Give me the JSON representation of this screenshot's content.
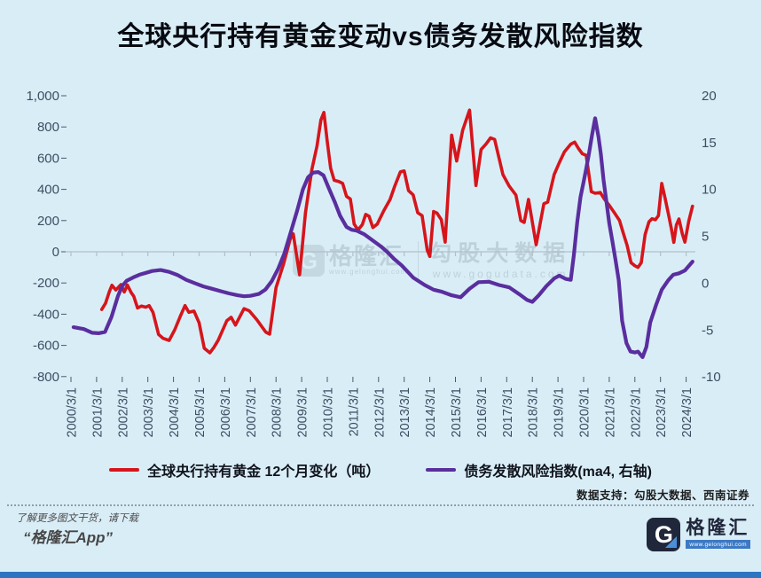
{
  "title": "全球央行持有黄金变动vs债务发散风险指数",
  "source_note": "数据支持：勾股大数据、西南证券",
  "watermark": {
    "icon": "G",
    "brand_name": "格隆汇",
    "brand_url": "www.gelonghui.com",
    "data_brand": "勾股大数据",
    "data_url": "www.gogudata.com"
  },
  "footer": {
    "promo_line1": "了解更多图文干货，请下载",
    "promo_line2": "“格隆汇App”",
    "logo_letter": "G",
    "logo_name": "格隆汇",
    "logo_url": "www.gelonghui.com"
  },
  "colors": {
    "background": "#d9edf7",
    "gold_series": "#d6151b",
    "risk_series": "#5a2e9e",
    "axis_text": "#3d4e61",
    "zero_line": "#b3bfc9",
    "tick_dash": "#4a5a68",
    "bottom_bar": "#2e74c0",
    "logo_navy": "#20273b",
    "logo_blue": "#4a8fd8"
  },
  "chart_data": {
    "type": "line",
    "title": "全球央行持有黄金变动vs债务发散风险指数",
    "grid": false,
    "legend_position": "bottom",
    "x_axis": {
      "tick_labels": [
        "2000/3/1",
        "2001/3/1",
        "2002/3/1",
        "2003/3/1",
        "2004/3/1",
        "2005/3/1",
        "2006/3/1",
        "2007/3/1",
        "2008/3/1",
        "2009/3/1",
        "2010/3/1",
        "2011/3/1",
        "2012/3/1",
        "2013/3/1",
        "2014/3/1",
        "2015/3/1",
        "2016/3/1",
        "2017/3/1",
        "2018/3/1",
        "2019/3/1",
        "2020/3/1",
        "2021/3/1",
        "2022/3/1",
        "2023/3/1",
        "2024/3/1"
      ]
    },
    "left_axis": {
      "min": -800,
      "max": 1000,
      "step": 200,
      "tick_values": [
        1000,
        800,
        600,
        400,
        200,
        0,
        -200,
        -400,
        -600,
        -800
      ],
      "tick_labels": [
        "1,000",
        "800",
        "600",
        "400",
        "200",
        "0",
        "-200",
        "-400",
        "-600",
        "-800"
      ]
    },
    "right_axis": {
      "min": -10,
      "max": 20,
      "step": 5,
      "tick_values": [
        20,
        15,
        10,
        5,
        0,
        -5,
        -10
      ],
      "tick_labels": [
        "20",
        "15",
        "10",
        "5",
        "0",
        "-5",
        "-10"
      ]
    },
    "series": [
      {
        "name": "全球央行持有黄金 12个月变化（吨）",
        "axis": "left",
        "color": "#d6151b",
        "points": [
          [
            1.2,
            -370
          ],
          [
            1.35,
            -330
          ],
          [
            1.5,
            -255
          ],
          [
            1.6,
            -215
          ],
          [
            1.75,
            -245
          ],
          [
            1.95,
            -210
          ],
          [
            2.08,
            -258
          ],
          [
            2.2,
            -213
          ],
          [
            2.35,
            -262
          ],
          [
            2.45,
            -285
          ],
          [
            2.6,
            -360
          ],
          [
            2.75,
            -348
          ],
          [
            2.92,
            -355
          ],
          [
            3.05,
            -345
          ],
          [
            3.2,
            -388
          ],
          [
            3.42,
            -530
          ],
          [
            3.6,
            -555
          ],
          [
            3.83,
            -568
          ],
          [
            4.05,
            -500
          ],
          [
            4.25,
            -420
          ],
          [
            4.45,
            -345
          ],
          [
            4.6,
            -388
          ],
          [
            4.8,
            -380
          ],
          [
            5.0,
            -455
          ],
          [
            5.2,
            -618
          ],
          [
            5.42,
            -648
          ],
          [
            5.58,
            -612
          ],
          [
            5.75,
            -565
          ],
          [
            6.08,
            -442
          ],
          [
            6.25,
            -420
          ],
          [
            6.42,
            -470
          ],
          [
            6.75,
            -365
          ],
          [
            6.95,
            -378
          ],
          [
            7.25,
            -435
          ],
          [
            7.6,
            -515
          ],
          [
            7.75,
            -528
          ],
          [
            8.0,
            -230
          ],
          [
            8.3,
            -75
          ],
          [
            8.55,
            80
          ],
          [
            8.67,
            115
          ],
          [
            8.92,
            -148
          ],
          [
            9.15,
            250
          ],
          [
            9.4,
            530
          ],
          [
            9.6,
            678
          ],
          [
            9.75,
            845
          ],
          [
            9.87,
            893
          ],
          [
            10.0,
            705
          ],
          [
            10.13,
            535
          ],
          [
            10.27,
            458
          ],
          [
            10.45,
            450
          ],
          [
            10.6,
            438
          ],
          [
            10.75,
            355
          ],
          [
            10.9,
            338
          ],
          [
            11.05,
            178
          ],
          [
            11.2,
            140
          ],
          [
            11.37,
            175
          ],
          [
            11.5,
            240
          ],
          [
            11.63,
            228
          ],
          [
            11.78,
            155
          ],
          [
            11.95,
            178
          ],
          [
            12.2,
            262
          ],
          [
            12.45,
            335
          ],
          [
            12.63,
            420
          ],
          [
            12.85,
            512
          ],
          [
            13.0,
            518
          ],
          [
            13.17,
            392
          ],
          [
            13.35,
            365
          ],
          [
            13.53,
            250
          ],
          [
            13.7,
            232
          ],
          [
            13.9,
            10
          ],
          [
            14.0,
            -30
          ],
          [
            14.15,
            258
          ],
          [
            14.28,
            248
          ],
          [
            14.45,
            205
          ],
          [
            14.6,
            62
          ],
          [
            14.85,
            748
          ],
          [
            15.05,
            582
          ],
          [
            15.28,
            778
          ],
          [
            15.55,
            908
          ],
          [
            15.8,
            425
          ],
          [
            16.0,
            655
          ],
          [
            16.2,
            692
          ],
          [
            16.37,
            730
          ],
          [
            16.53,
            720
          ],
          [
            16.85,
            495
          ],
          [
            17.1,
            420
          ],
          [
            17.36,
            363
          ],
          [
            17.55,
            200
          ],
          [
            17.68,
            188
          ],
          [
            17.85,
            335
          ],
          [
            18.15,
            45
          ],
          [
            18.45,
            308
          ],
          [
            18.6,
            318
          ],
          [
            18.85,
            495
          ],
          [
            19.05,
            570
          ],
          [
            19.25,
            640
          ],
          [
            19.5,
            690
          ],
          [
            19.65,
            703
          ],
          [
            19.8,
            662
          ],
          [
            19.95,
            628
          ],
          [
            20.1,
            618
          ],
          [
            20.3,
            385
          ],
          [
            20.45,
            375
          ],
          [
            20.65,
            380
          ],
          [
            20.8,
            340
          ],
          [
            21.0,
            298
          ],
          [
            21.2,
            250
          ],
          [
            21.4,
            200
          ],
          [
            21.55,
            118
          ],
          [
            21.7,
            40
          ],
          [
            21.85,
            -70
          ],
          [
            22.0,
            -90
          ],
          [
            22.12,
            -100
          ],
          [
            22.25,
            -70
          ],
          [
            22.4,
            112
          ],
          [
            22.55,
            192
          ],
          [
            22.67,
            212
          ],
          [
            22.8,
            205
          ],
          [
            22.92,
            232
          ],
          [
            23.05,
            438
          ],
          [
            23.17,
            350
          ],
          [
            23.3,
            248
          ],
          [
            23.42,
            152
          ],
          [
            23.52,
            60
          ],
          [
            23.62,
            172
          ],
          [
            23.72,
            210
          ],
          [
            23.85,
            115
          ],
          [
            23.95,
            62
          ],
          [
            24.1,
            195
          ],
          [
            24.25,
            292
          ]
        ]
      },
      {
        "name": "债务发散风险指数(ma4, 右轴)",
        "axis": "right",
        "color": "#5a2e9e",
        "points": [
          [
            0.1,
            -4.7
          ],
          [
            0.5,
            -4.9
          ],
          [
            0.83,
            -5.3
          ],
          [
            1.08,
            -5.35
          ],
          [
            1.33,
            -5.2
          ],
          [
            1.58,
            -3.6
          ],
          [
            1.83,
            -1.4
          ],
          [
            2.0,
            -0.3
          ],
          [
            2.17,
            0.25
          ],
          [
            2.42,
            0.6
          ],
          [
            2.67,
            0.9
          ],
          [
            2.92,
            1.1
          ],
          [
            3.17,
            1.3
          ],
          [
            3.5,
            1.4
          ],
          [
            3.83,
            1.2
          ],
          [
            4.17,
            0.85
          ],
          [
            4.5,
            0.35
          ],
          [
            4.83,
            0.0
          ],
          [
            5.17,
            -0.35
          ],
          [
            5.5,
            -0.6
          ],
          [
            5.83,
            -0.85
          ],
          [
            6.17,
            -1.1
          ],
          [
            6.5,
            -1.3
          ],
          [
            6.75,
            -1.4
          ],
          [
            7.0,
            -1.35
          ],
          [
            7.33,
            -1.15
          ],
          [
            7.58,
            -0.7
          ],
          [
            7.83,
            0.2
          ],
          [
            8.08,
            1.5
          ],
          [
            8.33,
            3.2
          ],
          [
            8.58,
            5.5
          ],
          [
            8.83,
            7.8
          ],
          [
            9.05,
            10.0
          ],
          [
            9.25,
            11.3
          ],
          [
            9.45,
            11.8
          ],
          [
            9.65,
            11.85
          ],
          [
            9.85,
            11.5
          ],
          [
            10.05,
            10.2
          ],
          [
            10.3,
            8.6
          ],
          [
            10.5,
            7.2
          ],
          [
            10.75,
            6.0
          ],
          [
            10.95,
            5.7
          ],
          [
            11.15,
            5.6
          ],
          [
            11.45,
            5.2
          ],
          [
            11.7,
            4.7
          ],
          [
            12.1,
            3.9
          ],
          [
            12.35,
            3.3
          ],
          [
            12.6,
            2.6
          ],
          [
            12.9,
            1.9
          ],
          [
            13.35,
            0.6
          ],
          [
            13.8,
            -0.2
          ],
          [
            14.15,
            -0.7
          ],
          [
            14.45,
            -0.9
          ],
          [
            14.85,
            -1.3
          ],
          [
            15.2,
            -1.5
          ],
          [
            15.55,
            -0.6
          ],
          [
            15.9,
            0.1
          ],
          [
            16.3,
            0.15
          ],
          [
            16.7,
            -0.2
          ],
          [
            17.1,
            -0.45
          ],
          [
            17.5,
            -1.2
          ],
          [
            17.8,
            -1.8
          ],
          [
            18.0,
            -2.0
          ],
          [
            18.25,
            -1.3
          ],
          [
            18.55,
            -0.3
          ],
          [
            18.85,
            0.5
          ],
          [
            19.05,
            0.8
          ],
          [
            19.3,
            0.45
          ],
          [
            19.5,
            0.35
          ],
          [
            19.62,
            3.0
          ],
          [
            19.75,
            6.5
          ],
          [
            19.88,
            9.2
          ],
          [
            20.0,
            10.8
          ],
          [
            20.1,
            12.2
          ],
          [
            20.2,
            13.7
          ],
          [
            20.33,
            15.8
          ],
          [
            20.45,
            17.6
          ],
          [
            20.58,
            15.6
          ],
          [
            20.67,
            13.8
          ],
          [
            20.78,
            11.0
          ],
          [
            20.9,
            8.5
          ],
          [
            21.0,
            6.4
          ],
          [
            21.12,
            4.5
          ],
          [
            21.25,
            2.4
          ],
          [
            21.37,
            0.3
          ],
          [
            21.5,
            -4.0
          ],
          [
            21.67,
            -6.4
          ],
          [
            21.83,
            -7.3
          ],
          [
            22.0,
            -7.4
          ],
          [
            22.12,
            -7.3
          ],
          [
            22.3,
            -7.9
          ],
          [
            22.45,
            -6.8
          ],
          [
            22.6,
            -4.2
          ],
          [
            22.83,
            -2.3
          ],
          [
            23.05,
            -0.7
          ],
          [
            23.3,
            0.3
          ],
          [
            23.5,
            0.9
          ],
          [
            23.72,
            1.05
          ],
          [
            23.95,
            1.35
          ],
          [
            24.25,
            2.3
          ]
        ]
      }
    ]
  }
}
